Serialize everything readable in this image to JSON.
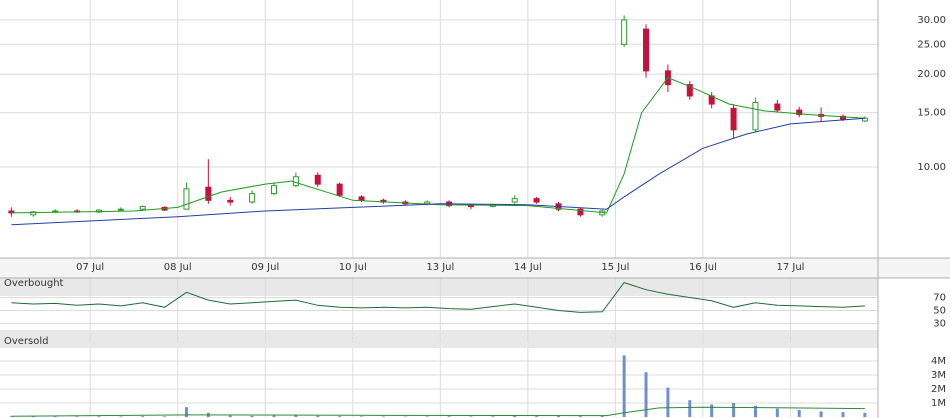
{
  "chart_data": [
    {
      "type": "candlestick",
      "log_y": true,
      "grid": true,
      "up_color": "#2a9d2a",
      "down_color": "#c8103c",
      "xlim": [
        -1.03,
        9.0
      ],
      "xticks": [
        {
          "value": 0,
          "label": "07 Jul"
        },
        {
          "value": 1,
          "label": "08 Jul"
        },
        {
          "value": 2,
          "label": "09 Jul"
        },
        {
          "value": 3,
          "label": "10 Jul"
        },
        {
          "value": 4,
          "label": "13 Jul"
        },
        {
          "value": 5,
          "label": "14 Jul"
        },
        {
          "value": 6,
          "label": "15 Jul"
        },
        {
          "value": 7,
          "label": "16 Jul"
        },
        {
          "value": 8,
          "label": "17 Jul"
        }
      ],
      "ylim": [
        5.07,
        34.8
      ],
      "yticks": [
        {
          "value": 10,
          "label": "10.00"
        },
        {
          "value": 15,
          "label": "15.00"
        },
        {
          "value": 20,
          "label": "20.00"
        },
        {
          "value": 25,
          "label": "25.00"
        },
        {
          "value": 30,
          "label": "30.00"
        }
      ],
      "x": [
        -0.9,
        -0.65,
        -0.4,
        -0.15,
        0.1,
        0.35,
        0.6,
        0.85,
        1.1,
        1.35,
        1.6,
        1.85,
        2.1,
        2.35,
        2.6,
        2.85,
        3.1,
        3.35,
        3.6,
        3.85,
        4.1,
        4.35,
        4.6,
        4.85,
        5.1,
        5.35,
        5.6,
        5.85,
        6.1,
        6.35,
        6.6,
        6.85,
        7.1,
        7.35,
        7.6,
        7.85,
        8.1,
        8.35,
        8.6,
        8.85
      ],
      "open": [
        7.2,
        7.0,
        7.15,
        7.2,
        7.15,
        7.25,
        7.3,
        7.4,
        7.3,
        8.6,
        7.8,
        7.7,
        8.2,
        8.7,
        9.4,
        8.8,
        8.0,
        7.8,
        7.7,
        7.6,
        7.7,
        7.5,
        7.45,
        7.7,
        7.9,
        7.6,
        7.3,
        7.0,
        25,
        28,
        20.5,
        18.5,
        17,
        15.5,
        13.2,
        16,
        15.3,
        14.8,
        14.6,
        14.1
      ],
      "high": [
        7.4,
        7.2,
        7.3,
        7.3,
        7.3,
        7.4,
        7.5,
        7.45,
        8.9,
        10.6,
        8.0,
        8.4,
        8.9,
        9.6,
        9.6,
        8.9,
        8.1,
        7.9,
        7.8,
        7.8,
        7.8,
        7.6,
        7.6,
        8.1,
        8.0,
        7.7,
        7.4,
        7.3,
        31,
        29,
        21.5,
        19,
        17.5,
        16,
        16.8,
        16.5,
        15.7,
        15.6,
        14.8,
        14.6
      ],
      "low": [
        6.9,
        6.9,
        7.1,
        7.1,
        7.1,
        7.2,
        7.2,
        7.2,
        7.3,
        7.6,
        7.5,
        7.6,
        8.1,
        8.6,
        8.6,
        8.0,
        7.7,
        7.6,
        7.5,
        7.5,
        7.4,
        7.3,
        7.4,
        7.6,
        7.6,
        7.2,
        6.9,
        6.9,
        24.5,
        19.5,
        17.5,
        16.5,
        15.5,
        12.4,
        13,
        15,
        14.5,
        14.0,
        14.1,
        14.0
      ],
      "close": [
        7.1,
        7.15,
        7.2,
        7.15,
        7.25,
        7.3,
        7.45,
        7.25,
        8.5,
        7.8,
        7.7,
        8.2,
        8.7,
        9.3,
        8.8,
        8.1,
        7.8,
        7.7,
        7.6,
        7.7,
        7.5,
        7.45,
        7.55,
        7.9,
        7.7,
        7.3,
        7.0,
        7.2,
        30,
        20.5,
        18.5,
        17,
        16,
        13.2,
        16.2,
        15.3,
        14.8,
        14.6,
        14.3,
        14.4
      ],
      "lines": [
        {
          "color": "#1f9a1f",
          "x": [
            -0.9,
            0.5,
            1.0,
            1.5,
            2.0,
            2.3,
            3.0,
            4.0,
            5.0,
            5.9,
            6.1,
            6.3,
            6.6,
            6.9,
            7.3,
            7.7,
            8.2,
            8.85
          ],
          "values": [
            7.1,
            7.2,
            7.4,
            8.3,
            8.8,
            9.0,
            7.8,
            7.55,
            7.5,
            7.1,
            9.5,
            15,
            19.5,
            18,
            16,
            15.2,
            14.8,
            14.4
          ]
        },
        {
          "color": "#2440a0",
          "x": [
            -0.9,
            1.0,
            2.0,
            3.0,
            4.0,
            5.0,
            5.9,
            6.1,
            6.5,
            7.0,
            7.5,
            8.0,
            8.85
          ],
          "values": [
            6.5,
            6.9,
            7.2,
            7.4,
            7.6,
            7.55,
            7.3,
            8.0,
            9.5,
            11.5,
            12.8,
            13.8,
            14.4
          ]
        }
      ]
    },
    {
      "type": "line",
      "upper_label": "Overbought",
      "lower_label": "Oversold",
      "color": "#1e6b3a",
      "ylim": [
        0,
        100
      ],
      "yticks": [
        30,
        50,
        70
      ],
      "x": [
        -0.9,
        -0.65,
        -0.4,
        -0.15,
        0.1,
        0.35,
        0.6,
        0.85,
        1.1,
        1.35,
        1.6,
        1.85,
        2.1,
        2.35,
        2.6,
        2.85,
        3.1,
        3.35,
        3.6,
        3.85,
        4.1,
        4.35,
        4.6,
        4.85,
        5.1,
        5.35,
        5.6,
        5.85,
        6.1,
        6.35,
        6.6,
        6.85,
        7.1,
        7.35,
        7.6,
        7.85,
        8.1,
        8.35,
        8.6,
        8.85
      ],
      "values": [
        62,
        60,
        61,
        58,
        60,
        57,
        62,
        55,
        78,
        66,
        60,
        62,
        64,
        66,
        58,
        55,
        54,
        55,
        54,
        55,
        53,
        52,
        56,
        60,
        55,
        50,
        47,
        48,
        93,
        82,
        75,
        70,
        65,
        55,
        62,
        58,
        57,
        56,
        55,
        57
      ]
    },
    {
      "type": "bar",
      "color": "#6f8fcf",
      "line_color": "#2b8a3e",
      "ylim": [
        0,
        4930000
      ],
      "yticks": [
        {
          "value": 1000000,
          "label": "1M"
        },
        {
          "value": 2000000,
          "label": "2M"
        },
        {
          "value": 3000000,
          "label": "3M"
        },
        {
          "value": 4000000,
          "label": "4M"
        }
      ],
      "x": [
        -0.9,
        -0.65,
        -0.4,
        -0.15,
        0.1,
        0.35,
        0.6,
        0.85,
        1.1,
        1.35,
        1.6,
        1.85,
        2.1,
        2.35,
        2.6,
        2.85,
        3.1,
        3.35,
        3.6,
        3.85,
        4.1,
        4.35,
        4.6,
        4.85,
        5.1,
        5.35,
        5.6,
        5.85,
        6.1,
        6.35,
        6.6,
        6.85,
        7.1,
        7.35,
        7.6,
        7.85,
        8.1,
        8.35,
        8.6,
        8.85
      ],
      "values": [
        50000,
        40000,
        60000,
        40000,
        50000,
        40000,
        60000,
        50000,
        700000,
        300000,
        100000,
        80000,
        100000,
        120000,
        90000,
        60000,
        40000,
        40000,
        30000,
        40000,
        50000,
        40000,
        50000,
        80000,
        60000,
        70000,
        60000,
        90000,
        4400000,
        3200000,
        2100000,
        1200000,
        900000,
        1000000,
        800000,
        600000,
        500000,
        400000,
        350000,
        300000
      ],
      "line_x": [
        -0.9,
        1.15,
        3.0,
        5.9,
        6.1,
        6.5,
        7.0,
        8.0,
        8.85
      ],
      "line_values": [
        50000,
        150000,
        120000,
        100000,
        300000,
        650000,
        700000,
        650000,
        600000
      ]
    }
  ]
}
